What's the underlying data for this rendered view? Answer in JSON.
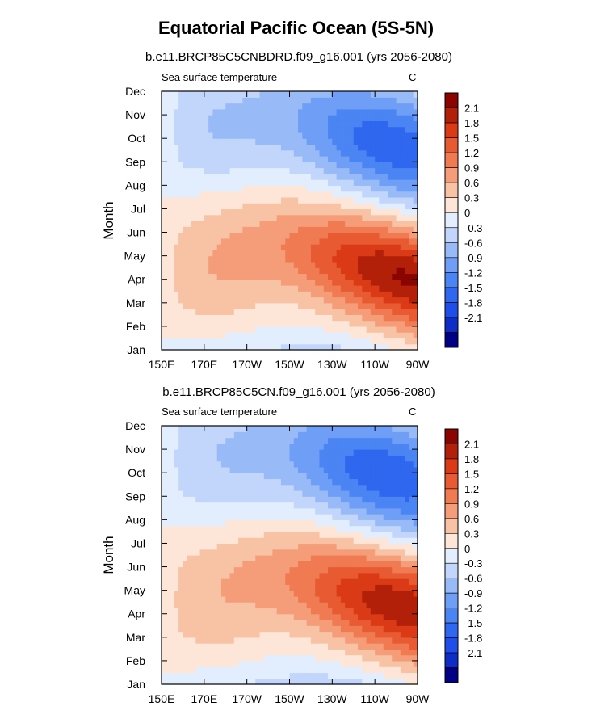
{
  "figure": {
    "title": "Equatorial Pacific Ocean (5S-5N)"
  },
  "colors": {
    "levels": [
      "#000084",
      "#0e2cc6",
      "#1f4fe8",
      "#2f67ef",
      "#4b84f3",
      "#6f9ef6",
      "#98bbf7",
      "#c2d6fb",
      "#e2eefd",
      "#fde6d8",
      "#f8c2a4",
      "#f59d78",
      "#f07a52",
      "#e85a32",
      "#db3a16",
      "#b3200a",
      "#8a0400"
    ]
  },
  "chart_data": [
    {
      "type": "heatmap",
      "title": "b.e11.BRCP85C5CNBDRD.f09_g16.001 (yrs 2056-2080)",
      "left_label": "Sea surface temperature",
      "right_label": "C",
      "xlabel": "",
      "ylabel": "Month",
      "x_ticks": [
        "150E",
        "170E",
        "170W",
        "150W",
        "130W",
        "110W",
        "90W"
      ],
      "x_tick_lon": [
        150,
        170,
        190,
        210,
        230,
        250,
        270
      ],
      "xlim": [
        150,
        270
      ],
      "y_ticks": [
        "Jan",
        "Feb",
        "Mar",
        "Apr",
        "May",
        "Jun",
        "Jul",
        "Aug",
        "Sep",
        "Oct",
        "Nov",
        "Dec"
      ],
      "colorbar_labels": [
        "2.1",
        "1.8",
        "1.5",
        "1.2",
        "0.9",
        "0.6",
        "0.3",
        "0",
        "-0.3",
        "-0.6",
        "-0.9",
        "-1.2",
        "-1.5",
        "-1.8",
        "-2.1"
      ],
      "colorbar_levels": [
        -2.1,
        -1.8,
        -1.5,
        -1.2,
        -0.9,
        -0.6,
        -0.3,
        0,
        0.3,
        0.6,
        0.9,
        1.2,
        1.5,
        1.8,
        2.1
      ],
      "model": {
        "warm_amp": 2.15,
        "cold_amp": 1.7,
        "warm_peak_lon": 265,
        "warm_peak_month": 3.1,
        "cold_peak_lon": 258,
        "cold_peak_month": 8.7,
        "propagation_months_per_deg": 0.025,
        "annual_phase_month": 3.3,
        "west_ring_amp": 0.6
      }
    },
    {
      "type": "heatmap",
      "title": "b.e11.BRCP85C5CN.f09_g16.001 (yrs 2056-2080)",
      "left_label": "Sea surface temperature",
      "right_label": "C",
      "xlabel": "",
      "ylabel": "Month",
      "x_ticks": [
        "150E",
        "170E",
        "170W",
        "150W",
        "130W",
        "110W",
        "90W"
      ],
      "x_tick_lon": [
        150,
        170,
        190,
        210,
        230,
        250,
        270
      ],
      "xlim": [
        150,
        270
      ],
      "y_ticks": [
        "Jan",
        "Feb",
        "Mar",
        "Apr",
        "May",
        "Jun",
        "Jul",
        "Aug",
        "Sep",
        "Oct",
        "Nov",
        "Dec"
      ],
      "colorbar_labels": [
        "2.1",
        "1.8",
        "1.5",
        "1.2",
        "0.9",
        "0.6",
        "0.3",
        "0",
        "-0.3",
        "-0.6",
        "-0.9",
        "-1.2",
        "-1.5",
        "-1.8",
        "-2.1"
      ],
      "colorbar_levels": [
        -2.1,
        -1.8,
        -1.5,
        -1.2,
        -0.9,
        -0.6,
        -0.3,
        0,
        0.3,
        0.6,
        0.9,
        1.2,
        1.5,
        1.8,
        2.1
      ],
      "model": {
        "warm_amp": 2.05,
        "cold_amp": 1.75,
        "warm_peak_lon": 264,
        "warm_peak_month": 3.3,
        "cold_peak_lon": 256,
        "cold_peak_month": 8.9,
        "propagation_months_per_deg": 0.024,
        "annual_phase_month": 3.4,
        "west_ring_amp": 0.55
      }
    }
  ]
}
